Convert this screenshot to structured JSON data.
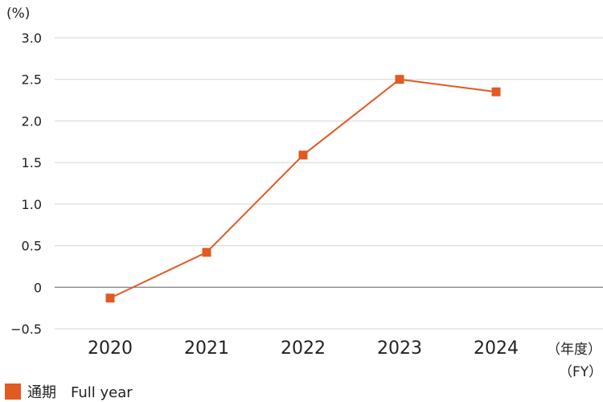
{
  "chart_data": {
    "type": "line",
    "y_unit_label": "(%)",
    "x_unit_label_jp": "（年度）",
    "x_unit_label_en": "（FY）",
    "categories": [
      "2020",
      "2021",
      "2022",
      "2023",
      "2024"
    ],
    "series": [
      {
        "name": "通期　Full year",
        "values": [
          -0.13,
          0.42,
          1.59,
          2.5,
          2.35
        ],
        "color": "#E05A22"
      }
    ],
    "ylim": [
      -0.5,
      3.0
    ],
    "yticks": [
      {
        "value": 3.0,
        "label": "3.0"
      },
      {
        "value": 2.5,
        "label": "2.5"
      },
      {
        "value": 2.0,
        "label": "2.0"
      },
      {
        "value": 1.5,
        "label": "1.5"
      },
      {
        "value": 1.0,
        "label": "1.0"
      },
      {
        "value": 0.5,
        "label": "0.5"
      },
      {
        "value": 0.0,
        "label": "0"
      },
      {
        "value": -0.5,
        "label": "−0.5"
      }
    ],
    "grid": true,
    "legend_position": "bottom-left"
  }
}
